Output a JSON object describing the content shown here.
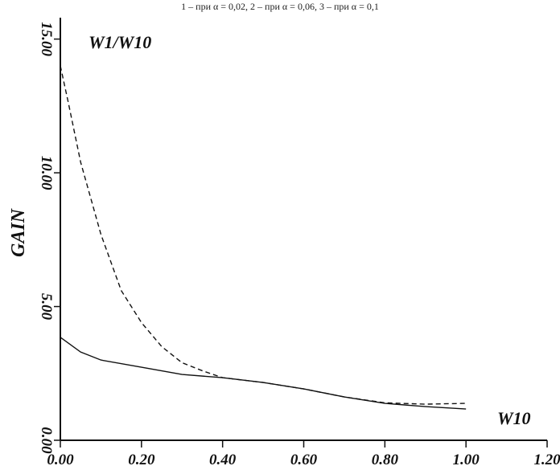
{
  "chart_data": {
    "type": "line",
    "title": "1 – при α = 0,02, 2 – при α = 0,06, 3 – при α = 0,1",
    "y_label": "GAIN",
    "annotation": "W1/W10",
    "x_label": "W10",
    "xlim": [
      0,
      1.2
    ],
    "ylim": [
      0,
      15.8
    ],
    "xticks": [
      {
        "value": 0,
        "label": "0.00"
      },
      {
        "value": 0.2,
        "label": "0.20"
      },
      {
        "value": 0.4,
        "label": "0.40"
      },
      {
        "value": 0.6,
        "label": "0.60"
      },
      {
        "value": 0.8,
        "label": "0.80"
      },
      {
        "value": 1.0,
        "label": "1.00"
      },
      {
        "value": 1.2,
        "label": "1.20"
      }
    ],
    "yticks": [
      {
        "value": 0,
        "label": "0.00"
      },
      {
        "value": 5,
        "label": "5.00"
      },
      {
        "value": 10,
        "label": "10.00"
      },
      {
        "value": 15,
        "label": "15.00"
      }
    ],
    "series": [
      {
        "color": "#111111",
        "dash": false,
        "x": [
          0,
          0.05,
          0.1,
          0.2,
          0.3,
          0.4,
          0.5,
          0.6,
          0.7,
          0.8,
          0.9,
          1.0
        ],
        "values": [
          3.85,
          3.3,
          3.0,
          2.73,
          2.46,
          2.34,
          2.16,
          1.92,
          1.62,
          1.38,
          1.26,
          1.17
        ]
      },
      {
        "color": "#111111",
        "dash": true,
        "x": [
          0,
          0.02,
          0.05,
          0.1,
          0.15,
          0.2,
          0.25,
          0.3,
          0.35,
          0.4,
          0.5,
          0.6,
          0.7,
          0.8,
          0.9,
          1.0
        ],
        "values": [
          14.0,
          12.6,
          10.4,
          7.7,
          5.6,
          4.4,
          3.5,
          2.9,
          2.6,
          2.34,
          2.16,
          1.92,
          1.62,
          1.4,
          1.35,
          1.38
        ]
      }
    ]
  }
}
